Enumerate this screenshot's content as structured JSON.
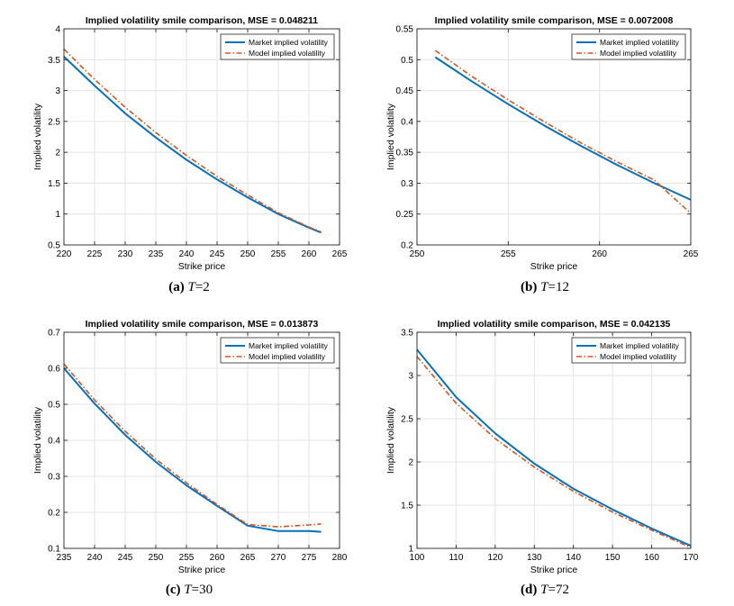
{
  "colors": {
    "market": "#0072BD",
    "model": "#D95319",
    "grid": "#e3e3e3",
    "axis": "#262626"
  },
  "chart_data": [
    {
      "type": "line",
      "title": "Implied volatility smile comparison, MSE = 0.048211",
      "xlabel": "Strike price",
      "ylabel": "Implied volatility",
      "xlim": [
        220,
        265
      ],
      "ylim": [
        0.5,
        4
      ],
      "xticks": [
        220,
        225,
        230,
        235,
        240,
        245,
        250,
        255,
        260,
        265
      ],
      "yticks": [
        0.5,
        1,
        1.5,
        2,
        2.5,
        3,
        3.5,
        4
      ],
      "ytick_labels": [
        "0.5",
        "1",
        "1.5",
        "2",
        "2.5",
        "3",
        "3.5",
        "4"
      ],
      "grid": true,
      "legend_position": "top-right",
      "series": [
        {
          "name": "Market implied volatility",
          "style": "solid",
          "x": [
            220,
            225,
            230,
            235,
            240,
            245,
            250,
            255,
            260,
            262
          ],
          "y": [
            3.55,
            3.08,
            2.63,
            2.24,
            1.88,
            1.56,
            1.27,
            1.0,
            0.78,
            0.7
          ]
        },
        {
          "name": "Model implied volatility",
          "style": "dashdot",
          "x": [
            220,
            225,
            230,
            235,
            240,
            245,
            250,
            255,
            260,
            262
          ],
          "y": [
            3.67,
            3.18,
            2.73,
            2.32,
            1.95,
            1.61,
            1.31,
            1.02,
            0.79,
            0.71
          ]
        }
      ],
      "caption_label": "(a)",
      "caption_var": "T",
      "caption_val": "=2"
    },
    {
      "type": "line",
      "title": "Implied volatility smile comparison, MSE = 0.0072008",
      "xlabel": "Strike price",
      "ylabel": "Implied volatility",
      "xlim": [
        250,
        265
      ],
      "ylim": [
        0.2,
        0.55
      ],
      "xticks": [
        250,
        255,
        260,
        265
      ],
      "yticks": [
        0.2,
        0.25,
        0.3,
        0.35,
        0.4,
        0.45,
        0.5,
        0.55
      ],
      "ytick_labels": [
        "0.2",
        "0.25",
        "0.3",
        "0.35",
        "0.4",
        "0.45",
        "0.5",
        "0.55"
      ],
      "grid": true,
      "legend_position": "top-right",
      "series": [
        {
          "name": "Market implied volatility",
          "style": "solid",
          "x": [
            251,
            253,
            255,
            257,
            259,
            261,
            263,
            265
          ],
          "y": [
            0.504,
            0.465,
            0.428,
            0.393,
            0.36,
            0.329,
            0.3,
            0.273
          ]
        },
        {
          "name": "Model implied volatility",
          "style": "dashdot",
          "x": [
            251,
            253,
            255,
            257,
            259,
            261,
            263,
            265
          ],
          "y": [
            0.515,
            0.473,
            0.435,
            0.399,
            0.365,
            0.334,
            0.305,
            0.251
          ]
        }
      ],
      "caption_label": "(b)",
      "caption_var": "T",
      "caption_val": "=12"
    },
    {
      "type": "line",
      "title": "Implied volatility smile comparison, MSE = 0.013873",
      "xlabel": "Strike price",
      "ylabel": "Implied volatility",
      "xlim": [
        235,
        280
      ],
      "ylim": [
        0.1,
        0.7
      ],
      "xticks": [
        235,
        240,
        245,
        250,
        255,
        260,
        265,
        270,
        275,
        280
      ],
      "yticks": [
        0.1,
        0.2,
        0.3,
        0.4,
        0.5,
        0.6,
        0.7
      ],
      "ytick_labels": [
        "0.1",
        "0.2",
        "0.3",
        "0.4",
        "0.5",
        "0.6",
        "0.7"
      ],
      "grid": true,
      "legend_position": "top-right",
      "series": [
        {
          "name": "Market implied volatility",
          "style": "solid",
          "x": [
            235,
            240,
            245,
            250,
            255,
            260,
            265,
            270,
            275,
            277
          ],
          "y": [
            0.6,
            0.502,
            0.415,
            0.34,
            0.275,
            0.218,
            0.163,
            0.148,
            0.148,
            0.146
          ]
        },
        {
          "name": "Model implied volatility",
          "style": "dashdot",
          "x": [
            235,
            240,
            245,
            250,
            255,
            260,
            265,
            270,
            275,
            277
          ],
          "y": [
            0.612,
            0.512,
            0.425,
            0.348,
            0.282,
            0.222,
            0.166,
            0.16,
            0.165,
            0.168
          ]
        }
      ],
      "caption_label": "(c)",
      "caption_var": "T",
      "caption_val": "=30"
    },
    {
      "type": "line",
      "title": "Implied volatility smile comparison, MSE = 0.042135",
      "xlabel": "Strike price",
      "ylabel": "Implied volatility",
      "xlim": [
        100,
        170
      ],
      "ylim": [
        1,
        3.5
      ],
      "xticks": [
        100,
        110,
        120,
        130,
        140,
        150,
        160,
        170
      ],
      "yticks": [
        1,
        1.5,
        2,
        2.5,
        3,
        3.5
      ],
      "ytick_labels": [
        "1",
        "1.5",
        "2",
        "2.5",
        "3",
        "3.5"
      ],
      "grid": true,
      "legend_position": "top-right",
      "series": [
        {
          "name": "Market implied volatility",
          "style": "solid",
          "x": [
            100,
            110,
            120,
            130,
            140,
            150,
            160,
            170
          ],
          "y": [
            3.3,
            2.75,
            2.33,
            1.98,
            1.69,
            1.45,
            1.23,
            1.03
          ]
        },
        {
          "name": "Model implied volatility",
          "style": "dashdot",
          "x": [
            100,
            110,
            120,
            130,
            140,
            150,
            160,
            170
          ],
          "y": [
            3.22,
            2.68,
            2.27,
            1.94,
            1.66,
            1.42,
            1.21,
            1.01
          ]
        }
      ],
      "caption_label": "(d)",
      "caption_var": "T",
      "caption_val": "=72"
    }
  ]
}
